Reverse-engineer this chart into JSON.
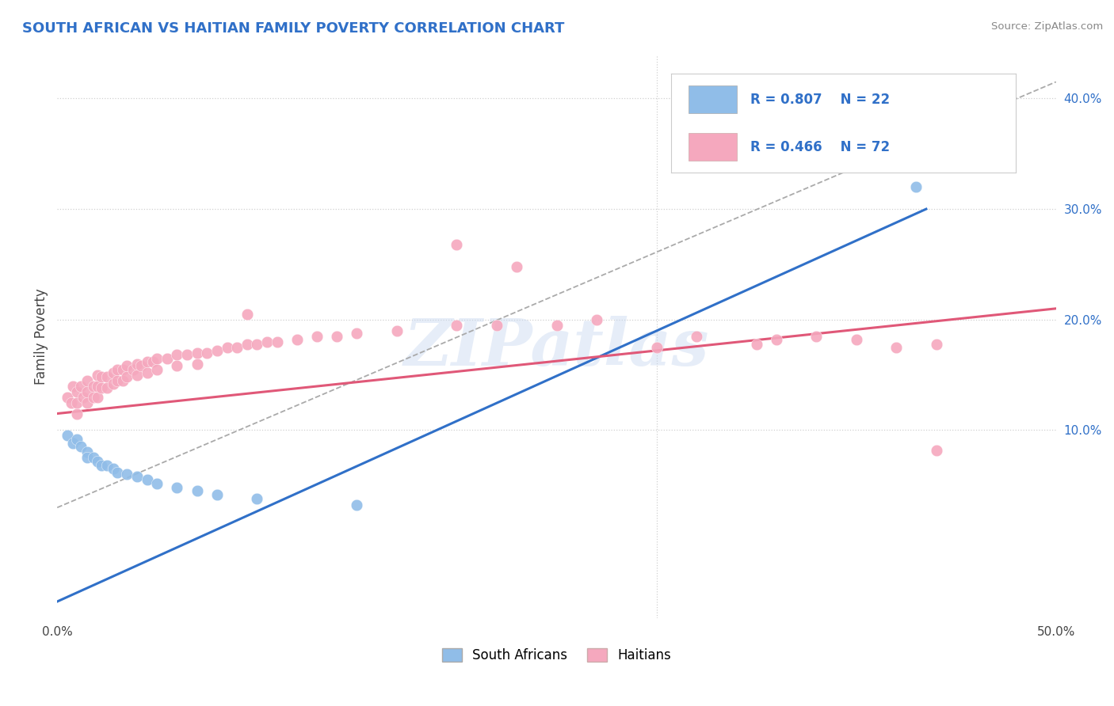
{
  "title": "SOUTH AFRICAN VS HAITIAN FAMILY POVERTY CORRELATION CHART",
  "source": "Source: ZipAtlas.com",
  "ylabel": "Family Poverty",
  "xlim": [
    0.0,
    0.5
  ],
  "ylim": [
    -0.07,
    0.44
  ],
  "xticks": [
    0.0,
    0.1,
    0.2,
    0.3,
    0.4,
    0.5
  ],
  "yticks_right": [
    0.1,
    0.2,
    0.3,
    0.4
  ],
  "ytick_right_labels": [
    "10.0%",
    "20.0%",
    "30.0%",
    "40.0%"
  ],
  "xtick_labels": [
    "0.0%",
    "",
    "",
    "",
    "",
    "50.0%"
  ],
  "grid_color": "#d0d0d0",
  "background_color": "#ffffff",
  "south_african_color": "#90bde8",
  "haitian_color": "#f5a8be",
  "south_african_line_color": "#3070c8",
  "haitian_line_color": "#e05878",
  "south_african_scatter": [
    [
      0.005,
      0.095
    ],
    [
      0.008,
      0.088
    ],
    [
      0.01,
      0.092
    ],
    [
      0.012,
      0.085
    ],
    [
      0.015,
      0.08
    ],
    [
      0.015,
      0.075
    ],
    [
      0.018,
      0.075
    ],
    [
      0.02,
      0.072
    ],
    [
      0.022,
      0.068
    ],
    [
      0.025,
      0.068
    ],
    [
      0.028,
      0.065
    ],
    [
      0.03,
      0.062
    ],
    [
      0.035,
      0.06
    ],
    [
      0.04,
      0.058
    ],
    [
      0.045,
      0.055
    ],
    [
      0.05,
      0.052
    ],
    [
      0.06,
      0.048
    ],
    [
      0.07,
      0.045
    ],
    [
      0.08,
      0.042
    ],
    [
      0.1,
      0.038
    ],
    [
      0.15,
      0.032
    ],
    [
      0.43,
      0.32
    ]
  ],
  "haitian_scatter": [
    [
      0.005,
      0.13
    ],
    [
      0.007,
      0.125
    ],
    [
      0.008,
      0.14
    ],
    [
      0.01,
      0.135
    ],
    [
      0.01,
      0.125
    ],
    [
      0.01,
      0.115
    ],
    [
      0.012,
      0.14
    ],
    [
      0.013,
      0.13
    ],
    [
      0.015,
      0.145
    ],
    [
      0.015,
      0.135
    ],
    [
      0.015,
      0.125
    ],
    [
      0.018,
      0.14
    ],
    [
      0.018,
      0.13
    ],
    [
      0.02,
      0.15
    ],
    [
      0.02,
      0.14
    ],
    [
      0.02,
      0.13
    ],
    [
      0.022,
      0.148
    ],
    [
      0.022,
      0.138
    ],
    [
      0.025,
      0.148
    ],
    [
      0.025,
      0.138
    ],
    [
      0.028,
      0.152
    ],
    [
      0.028,
      0.142
    ],
    [
      0.03,
      0.155
    ],
    [
      0.03,
      0.145
    ],
    [
      0.033,
      0.155
    ],
    [
      0.033,
      0.145
    ],
    [
      0.035,
      0.158
    ],
    [
      0.035,
      0.148
    ],
    [
      0.038,
      0.155
    ],
    [
      0.04,
      0.16
    ],
    [
      0.04,
      0.15
    ],
    [
      0.042,
      0.158
    ],
    [
      0.045,
      0.162
    ],
    [
      0.045,
      0.152
    ],
    [
      0.048,
      0.162
    ],
    [
      0.05,
      0.165
    ],
    [
      0.05,
      0.155
    ],
    [
      0.055,
      0.165
    ],
    [
      0.06,
      0.168
    ],
    [
      0.06,
      0.158
    ],
    [
      0.065,
      0.168
    ],
    [
      0.07,
      0.17
    ],
    [
      0.07,
      0.16
    ],
    [
      0.075,
      0.17
    ],
    [
      0.08,
      0.172
    ],
    [
      0.085,
      0.175
    ],
    [
      0.09,
      0.175
    ],
    [
      0.095,
      0.178
    ],
    [
      0.1,
      0.178
    ],
    [
      0.105,
      0.18
    ],
    [
      0.11,
      0.18
    ],
    [
      0.12,
      0.182
    ],
    [
      0.13,
      0.185
    ],
    [
      0.14,
      0.185
    ],
    [
      0.15,
      0.188
    ],
    [
      0.17,
      0.19
    ],
    [
      0.2,
      0.195
    ],
    [
      0.22,
      0.195
    ],
    [
      0.25,
      0.195
    ],
    [
      0.27,
      0.2
    ],
    [
      0.3,
      0.175
    ],
    [
      0.32,
      0.185
    ],
    [
      0.35,
      0.178
    ],
    [
      0.36,
      0.182
    ],
    [
      0.38,
      0.185
    ],
    [
      0.4,
      0.182
    ],
    [
      0.42,
      0.175
    ],
    [
      0.44,
      0.178
    ],
    [
      0.2,
      0.268
    ],
    [
      0.23,
      0.248
    ],
    [
      0.44,
      0.082
    ],
    [
      0.095,
      0.205
    ]
  ],
  "sa_line_x": [
    0.0,
    0.435
  ],
  "sa_line_y": [
    -0.055,
    0.3
  ],
  "haitian_line_x": [
    0.0,
    0.5
  ],
  "haitian_line_y": [
    0.115,
    0.21
  ],
  "dashed_line_x": [
    0.0,
    0.5
  ],
  "dashed_line_y": [
    0.03,
    0.415
  ],
  "watermark_text": "ZIPatlas",
  "figsize": [
    14.06,
    8.92
  ],
  "dpi": 100
}
